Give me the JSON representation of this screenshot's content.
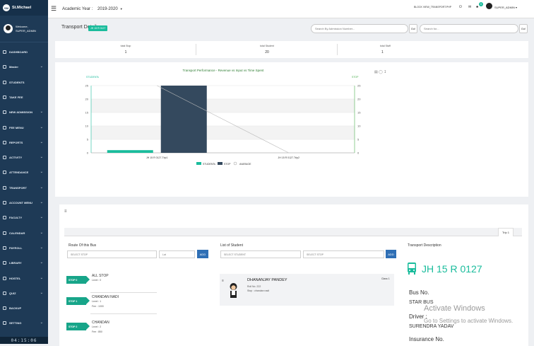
{
  "sidebar": {
    "school": "St.Michael",
    "welcome": "Welcome,",
    "user": "SUPER_ADMIN",
    "clock": "04:15:06",
    "items": [
      {
        "label": "DASHBOARD",
        "chev": false
      },
      {
        "label": "Master",
        "chev": true
      },
      {
        "label": "STUDENTS",
        "chev": false
      },
      {
        "label": "TAKE FEE",
        "chev": false
      },
      {
        "label": "NEW ADMISSION",
        "chev": true
      },
      {
        "label": "FEE MENU",
        "chev": true
      },
      {
        "label": "REPORTS",
        "chev": true
      },
      {
        "label": "ACTIVITY",
        "chev": true
      },
      {
        "label": "ATTENDANCE",
        "chev": true
      },
      {
        "label": "TRANSPORT",
        "chev": true
      },
      {
        "label": "ACCOUNT MENU",
        "chev": true
      },
      {
        "label": "FACULTY",
        "chev": true
      },
      {
        "label": "CALENDAR",
        "chev": true
      },
      {
        "label": "PAYROLL",
        "chev": true
      },
      {
        "label": "LIBRARY",
        "chev": true
      },
      {
        "label": "HOSTEL",
        "chev": true
      },
      {
        "label": "QUIZ",
        "chev": true
      },
      {
        "label": "BACKUP",
        "chev": false
      },
      {
        "label": "SETTING",
        "chev": true
      }
    ]
  },
  "topbar": {
    "academic_year_label": "Academic Year :",
    "academic_year": "2019-2020",
    "page_file": "BLOCK VIEW_TRANSPORT.PHP",
    "badge": "0",
    "user": "SUPER_ADMIN"
  },
  "header": {
    "title": "Transport Detail",
    "bus_button": "JH 15 R 0127",
    "search_admission_placeholder": "Search By Admission Number...",
    "search_placeholder": "Search for...",
    "go": "Go!"
  },
  "stats": [
    {
      "label": "total Stop",
      "value": "1"
    },
    {
      "label": "total Student",
      "value": "20"
    },
    {
      "label": "total Staff",
      "value": "1"
    }
  ],
  "chart_data": {
    "type": "bar",
    "title": "Transport Performance - Revenue vs Input vs Time Spent",
    "ylabel_left": "STUDENTs",
    "ylabel_right": "STOP",
    "categories": [
      "JH 15 R 0127-Trip1",
      "JH 15 R 0127-Trip2"
    ],
    "ylim": [
      0,
      25
    ],
    "yticks": [
      0,
      5,
      10,
      15,
      20,
      25
    ],
    "series": [
      {
        "name": "STUDENTs",
        "type": "bar",
        "color": "#1abc9c",
        "values": [
          1,
          0
        ]
      },
      {
        "name": "STOP",
        "type": "bar",
        "color": "#34495e",
        "values": [
          25,
          0
        ]
      },
      {
        "name": "AVARAGE",
        "type": "line",
        "color": "#bbbbbb",
        "values": [
          25,
          0
        ]
      }
    ]
  },
  "route": {
    "title": "Route Of this Bus",
    "select_stop": "SELECT STOP",
    "lat_placeholder": "Lat",
    "add": "ADD",
    "stops": [
      {
        "tag": "STOP 0",
        "name": "ALL STOP",
        "level": "Level : 0",
        "fee": ""
      },
      {
        "tag": "STOP 1",
        "name": "CHANDAN NADI",
        "level": "Level : 1",
        "fee": "Fee : 1000"
      },
      {
        "tag": "STOP 2",
        "name": "CHANDAN",
        "level": "Level : 2",
        "fee": "Fee : 850"
      }
    ]
  },
  "students": {
    "title": "List of Student",
    "select_student": "SELECT STUDENT",
    "select_stop": "SELECT STOP",
    "add": "ADD",
    "first": {
      "name": "DHANANJAY PANDEY",
      "roll": "Roll No. 222",
      "stop": "Stop : chandan nadi",
      "class": "Class 1"
    }
  },
  "trip_tab": "Trip 1",
  "transport": {
    "title": "Transport Description",
    "bus_number": "JH 15 R 0127",
    "bus_no_label": "Bus No.",
    "bus_no": "STAR BUS",
    "driver_label": "Driver :",
    "driver": "SURENDRA YADAV",
    "insurance_label": "Insurance No."
  },
  "watermark": {
    "line1": "Activate Windows",
    "line2": "Go to Settings to activate Windows."
  }
}
